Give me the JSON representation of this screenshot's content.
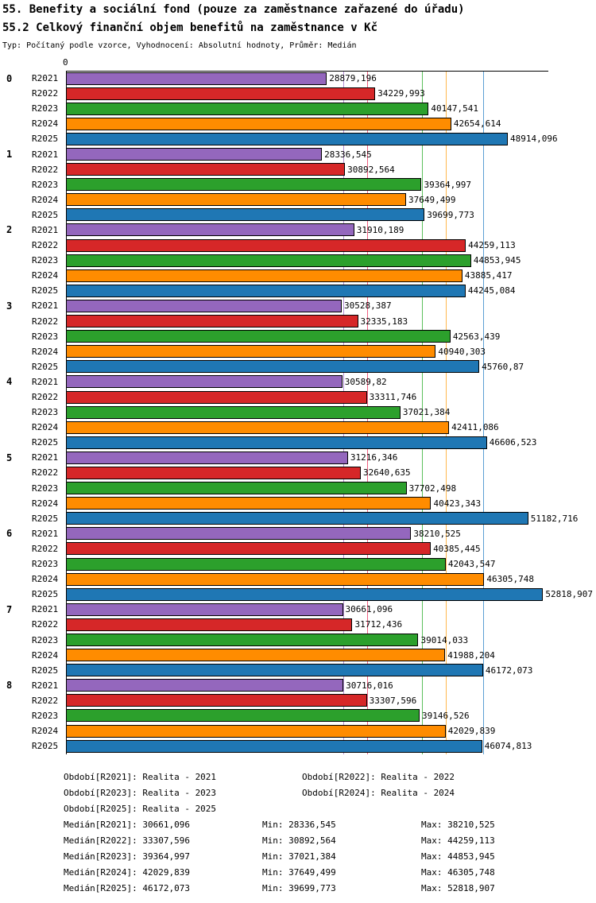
{
  "header": {
    "title": "55. Benefity a sociální fond (pouze za zaměstnance zařazené do úřadu)",
    "subtitle": "55.2 Celkový finanční objem benefitů na zaměstnance v Kč",
    "meta": "Typ: Počítaný podle vzorce, Vyhodnocení: Absolutní hodnoty, Průměr: Medián"
  },
  "chart_data": {
    "type": "bar",
    "orientation": "horizontal",
    "title": "55.2 Celkový finanční objem benefitů na zaměstnance v Kč",
    "value_unit": "Kč",
    "legend_position": "bottom",
    "grid": false,
    "x_axis": {
      "zero_label": "0",
      "xmax": 53400
    },
    "categories": [
      "0",
      "1",
      "2",
      "3",
      "4",
      "5",
      "6",
      "7",
      "8"
    ],
    "series": [
      {
        "name": "R2021",
        "color": "#9467bd",
        "median_line_color": "#b490d4",
        "median": 30661.096,
        "values": [
          28879.196,
          28336.545,
          31910.189,
          30528.387,
          30589.82,
          31216.346,
          38210.525,
          30661.096,
          30716.016
        ]
      },
      {
        "name": "R2022",
        "color": "#d62728",
        "median_line_color": "#f06080",
        "median": 33307.596,
        "values": [
          34229.993,
          30892.564,
          44259.113,
          32335.183,
          33311.746,
          32640.635,
          40385.445,
          31712.436,
          33307.596
        ]
      },
      {
        "name": "R2023",
        "color": "#2ca02c",
        "median_line_color": "#5cbf5c",
        "median": 39364.997,
        "values": [
          40147.541,
          39364.997,
          44853.945,
          42563.439,
          37021.384,
          37702.498,
          42043.547,
          39014.033,
          39146.526
        ]
      },
      {
        "name": "R2024",
        "color": "#ff8c00",
        "median_line_color": "#ffb84d",
        "median": 42029.839,
        "values": [
          42654.614,
          37649.499,
          43885.417,
          40940.303,
          42411.086,
          40423.343,
          46305.748,
          41988.204,
          42029.839
        ]
      },
      {
        "name": "R2025",
        "color": "#1f77b4",
        "median_line_color": "#5b9fd4",
        "median": 46172.073,
        "values": [
          48914.096,
          39699.773,
          44245.084,
          45760.87,
          46606.523,
          51182.716,
          52818.907,
          46172.073,
          46074.813
        ]
      }
    ]
  },
  "legend": {
    "items": [
      "Období[R2021]: Realita - 2021",
      "Období[R2022]: Realita - 2022",
      "Období[R2023]: Realita - 2023",
      "Období[R2024]: Realita - 2024",
      "Období[R2025]: Realita - 2025"
    ]
  },
  "stats": {
    "rows": [
      {
        "median": "Medián[R2021]: 30661,096",
        "min": "Min: 28336,545",
        "max": "Max: 38210,525"
      },
      {
        "median": "Medián[R2022]: 33307,596",
        "min": "Min: 30892,564",
        "max": "Max: 44259,113"
      },
      {
        "median": "Medián[R2023]: 39364,997",
        "min": "Min: 37021,384",
        "max": "Max: 44853,945"
      },
      {
        "median": "Medián[R2024]: 42029,839",
        "min": "Min: 37649,499",
        "max": "Max: 46305,748"
      },
      {
        "median": "Medián[R2025]: 46172,073",
        "min": "Min: 39699,773",
        "max": "Max: 52818,907"
      }
    ]
  }
}
